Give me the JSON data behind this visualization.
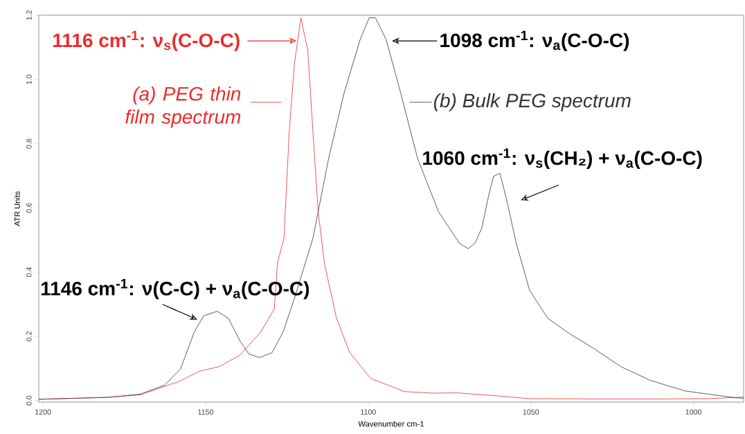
{
  "chart_data": {
    "type": "line",
    "xlabel": "Wavenumber cm-1",
    "ylabel": "ATR Units",
    "xlim": [
      1201.3,
      984.6
    ],
    "ylim": [
      -0.005,
      1.2
    ],
    "xticks": [
      1200,
      1150,
      1100,
      1050,
      1000
    ],
    "yticks": [
      {
        "value": 0,
        "label": "0.0"
      },
      {
        "value": 0.2,
        "label": "0.2"
      },
      {
        "value": 0.4,
        "label": "0.4"
      },
      {
        "value": 0.6,
        "label": "0.6"
      },
      {
        "value": 0.8,
        "label": "0.8"
      },
      {
        "value": 1.0,
        "label": "1.0"
      },
      {
        "value": 1.2,
        "label": "1.2"
      }
    ],
    "series": [
      {
        "name": "(a) PEG thin film spectrum",
        "color": "#ee2a2a",
        "x": [
          1201.3,
          1190,
          1180,
          1170,
          1164.7,
          1158,
          1152.0,
          1145.7,
          1139.4,
          1133.1,
          1128.9,
          1127.9,
          1125.9,
          1124.3,
          1122.7,
          1120.7,
          1118.6,
          1117.0,
          1115.4,
          1113.4,
          1109.8,
          1105.8,
          1099.3,
          1088.9,
          1080,
          1072.8,
          1062,
          1050.7,
          1030,
          1010,
          995,
          984.6
        ],
        "values": [
          0.004,
          null,
          0.01,
          0.018,
          0.037,
          0.06,
          0.091,
          0.106,
          0.142,
          0.213,
          0.285,
          0.429,
          0.506,
          0.836,
          1.05,
          1.192,
          1.091,
          0.836,
          0.588,
          0.423,
          0.258,
          0.151,
          0.069,
          0.028,
          0.023,
          0.024,
          0.016,
          0.006,
          0.005,
          0.005,
          0.006,
          0.011
        ]
      },
      {
        "name": "(b) Bulk PEG spectrum",
        "color": "#333333",
        "x": [
          1201.3,
          1190,
          1180,
          1170,
          1162.6,
          1157.7,
          1153.5,
          1150.6,
          1146.4,
          1143.0,
          1139.4,
          1136.7,
          1133.5,
          1129.6,
          1126.2,
          1122.6,
          1117.0,
          1112.2,
          1107.4,
          1102.5,
          1099.7,
          1097.8,
          1094.5,
          1090.5,
          1084.8,
          1078.4,
          1071.9,
          1069.3,
          1067.2,
          1065.1,
          1063.0,
          1061.5,
          1059.5,
          1057.4,
          1054.6,
          1050.4,
          1044.8,
          1037.8,
          1030.8,
          1022.4,
          1013.3,
          1002.7,
          987.4,
          984.6
        ],
        "values": [
          0.004,
          0.007,
          0.01,
          0.02,
          0.048,
          0.099,
          0.213,
          0.264,
          0.278,
          0.256,
          0.185,
          0.145,
          0.134,
          0.149,
          0.213,
          0.321,
          0.506,
          0.753,
          0.959,
          1.124,
          1.192,
          1.192,
          1.124,
          0.976,
          0.753,
          0.588,
          0.489,
          0.473,
          0.49,
          0.537,
          0.637,
          0.698,
          0.708,
          0.623,
          0.494,
          0.343,
          0.256,
          0.206,
          0.163,
          0.106,
          0.063,
          0.03,
          0.009,
          0.007
        ]
      }
    ],
    "annotations": [
      {
        "text": "1116 cm$^{-1}$: ν$_{s}$(C-O-C)",
        "x": 1121.8,
        "y": 1.12
      },
      {
        "text": "1098 cm$^{-1}$: ν$_{a}$(C-O-C)",
        "x": 1094.6,
        "y": 1.12
      },
      {
        "text": "1060 cm$^{-1}$: ν$_{s}$(CH₂) + ν$_{a}$(C-O-C)",
        "x": 1059.5,
        "y": 0.708
      },
      {
        "text": "1146 cm$^{-1}$: ν(C-C) + ν$_{a}$(C-O-C)",
        "x": 1146.4,
        "y": 0.278
      }
    ]
  }
}
